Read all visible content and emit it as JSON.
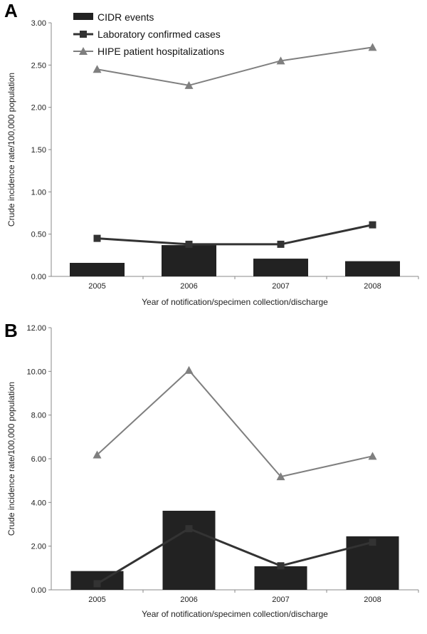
{
  "colors": {
    "bar": "#222222",
    "lab_line": "#333333",
    "hipe_line": "#7f7f7f",
    "axis": "#888888"
  },
  "legend": {
    "items": [
      {
        "label": "CIDR events",
        "marker": "bar"
      },
      {
        "label": "Laboratory confirmed cases",
        "marker": "square"
      },
      {
        "label": "HIPE patient hospitalizations",
        "marker": "triangle"
      }
    ]
  },
  "chart_data": [
    {
      "panel": "A",
      "type": "bar",
      "categories": [
        "2005",
        "2006",
        "2007",
        "2008"
      ],
      "xlabel": "Year of notification/specimen collection/discharge",
      "ylabel": "Crude incidence rate/100,000 population",
      "ylim": [
        0,
        3.0
      ],
      "yticks": [
        "0.00",
        "0.50",
        "1.00",
        "1.50",
        "2.00",
        "2.50",
        "3.00"
      ],
      "grid": false,
      "legend_position": "top-left",
      "series": [
        {
          "name": "CIDR events",
          "kind": "bar",
          "values": [
            0.16,
            0.37,
            0.21,
            0.18
          ]
        },
        {
          "name": "Laboratory confirmed cases",
          "kind": "line",
          "marker": "square",
          "values": [
            0.45,
            0.38,
            0.38,
            0.61
          ]
        },
        {
          "name": "HIPE patient hospitalizations",
          "kind": "line",
          "marker": "triangle",
          "values": [
            2.45,
            2.26,
            2.55,
            2.71
          ]
        }
      ]
    },
    {
      "panel": "B",
      "type": "bar",
      "categories": [
        "2005",
        "2006",
        "2007",
        "2008"
      ],
      "xlabel": "Year of notification/specimen collection/discharge",
      "ylabel": "Crude incidence rate/100,000 population",
      "ylim": [
        0,
        12.0
      ],
      "yticks": [
        "0.00",
        "2.00",
        "4.00",
        "6.00",
        "8.00",
        "10.00",
        "12.00"
      ],
      "grid": false,
      "series": [
        {
          "name": "CIDR events",
          "kind": "bar",
          "values": [
            0.86,
            3.62,
            1.08,
            2.45
          ]
        },
        {
          "name": "Laboratory confirmed cases",
          "kind": "line",
          "marker": "square",
          "values": [
            0.28,
            2.8,
            1.1,
            2.18
          ]
        },
        {
          "name": "HIPE patient hospitalizations",
          "kind": "line",
          "marker": "triangle",
          "values": [
            6.18,
            10.05,
            5.18,
            6.12
          ]
        }
      ]
    }
  ]
}
